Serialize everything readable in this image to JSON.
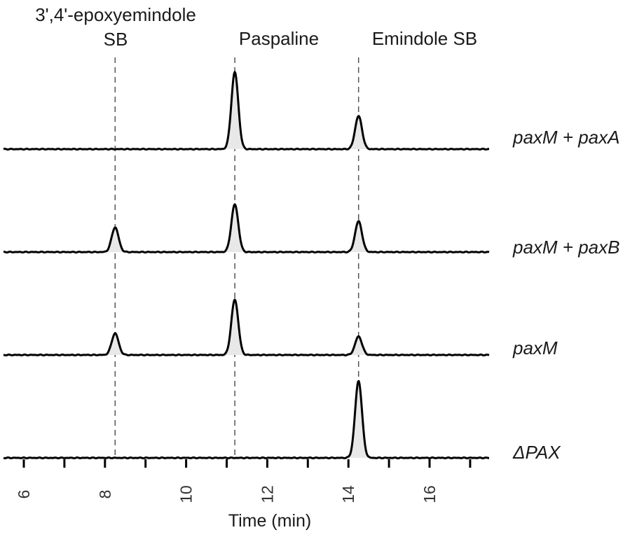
{
  "chart_data": {
    "type": "line",
    "xlabel": "Time (min)",
    "ylabel": "",
    "xlim": [
      5.7,
      17.5
    ],
    "x_ticks": [
      6,
      8,
      10,
      12,
      14,
      16
    ],
    "x_minor_ticks": [
      7,
      9,
      11,
      13,
      15,
      17
    ],
    "grid": false,
    "peak_markers": [
      {
        "label_lines": [
          "3',4'-epoxyemindole",
          "SB"
        ],
        "time": 8.25
      },
      {
        "label_lines": [
          "Paspaline"
        ],
        "time": 11.2
      },
      {
        "label_lines": [
          "Emindole SB"
        ],
        "time": 14.25
      }
    ],
    "series": [
      {
        "name": "paxM + paxA",
        "peaks": [
          {
            "time": 11.2,
            "height": 1.0
          },
          {
            "time": 14.25,
            "height": 0.43
          }
        ]
      },
      {
        "name": "paxM + paxB",
        "peaks": [
          {
            "time": 8.25,
            "height": 0.32
          },
          {
            "time": 11.2,
            "height": 0.62
          },
          {
            "time": 14.25,
            "height": 0.4
          }
        ]
      },
      {
        "name": "paxM",
        "peaks": [
          {
            "time": 8.25,
            "height": 0.28
          },
          {
            "time": 11.2,
            "height": 0.72
          },
          {
            "time": 14.25,
            "height": 0.24
          }
        ]
      },
      {
        "name": "ΔPAX",
        "peaks": [
          {
            "time": 14.25,
            "height": 1.0
          }
        ]
      }
    ]
  }
}
